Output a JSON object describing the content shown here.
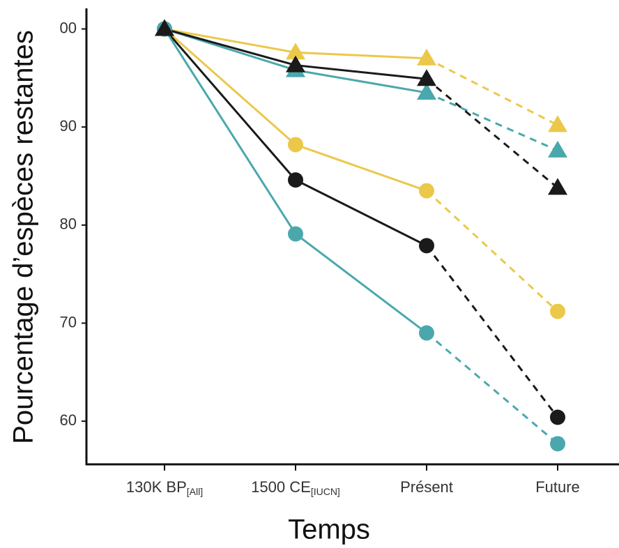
{
  "chart_data": {
    "type": "line",
    "x_title": "Temps",
    "y_title": "Pourcentage d’espèces restantes",
    "categories": [
      "130K BP",
      "1500 CE",
      "Présent",
      "Future"
    ],
    "category_subscripts": [
      "[All]",
      "[IUCN]",
      null,
      null
    ],
    "dashed_from_index": 2,
    "ylim": [
      55.6,
      102.1
    ],
    "yticks": [
      60,
      70,
      80,
      90,
      {
        "value": 100,
        "label": "00"
      }
    ],
    "grid": false,
    "series": [
      {
        "color": "#ebc84a",
        "marker": "circle",
        "values": [
          100,
          88.2,
          83.5,
          71.2
        ]
      },
      {
        "color": "#1a1a1a",
        "marker": "circle",
        "values": [
          100,
          84.6,
          77.9,
          60.4
        ]
      },
      {
        "color": "#4aa8ad",
        "marker": "circle",
        "values": [
          100,
          79.1,
          69.0,
          57.7
        ]
      },
      {
        "color": "#ebc84a",
        "marker": "triangle",
        "values": [
          100,
          97.6,
          97.0,
          90.2
        ]
      },
      {
        "color": "#4aa8ad",
        "marker": "triangle",
        "values": [
          100,
          95.8,
          93.5,
          87.6
        ]
      },
      {
        "color": "#1a1a1a",
        "marker": "triangle",
        "values": [
          100,
          96.3,
          94.9,
          83.8
        ]
      }
    ]
  }
}
